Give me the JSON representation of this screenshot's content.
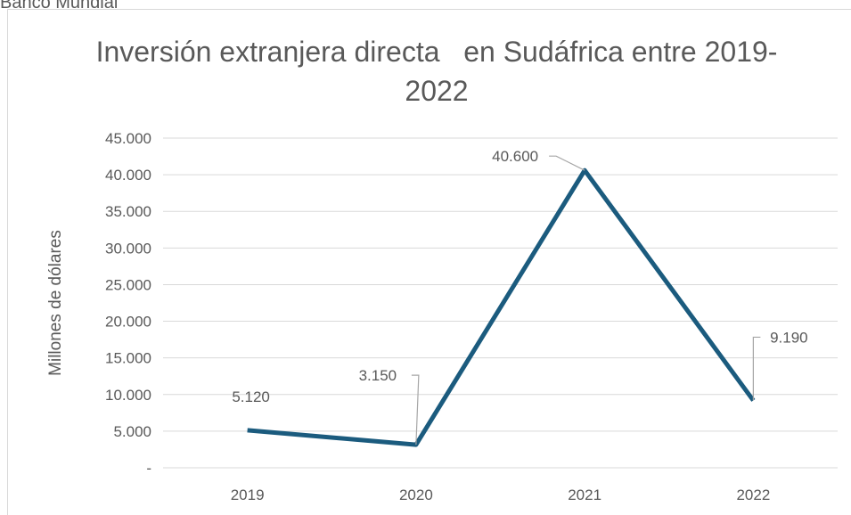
{
  "source": "Banco Mundial",
  "chart_data": {
    "type": "line",
    "title": "Inversión extranjera directa   en Sudáfrica entre 2019-2022",
    "y_label": "Millones de dólares",
    "categories": [
      "2019",
      "2020",
      "2021",
      "2022"
    ],
    "series": [
      {
        "name": "Inversión extranjera directa",
        "color": "#1b5b7e",
        "values": [
          5120,
          3150,
          40600,
          9190
        ],
        "value_labels": [
          "5.120",
          "3.150",
          "40.600",
          "9.190"
        ]
      }
    ],
    "ylim": [
      0,
      45000
    ],
    "yticks": [
      {
        "value": 0,
        "label": "-"
      },
      {
        "value": 5000,
        "label": "5.000"
      },
      {
        "value": 10000,
        "label": "10.000"
      },
      {
        "value": 15000,
        "label": "15.000"
      },
      {
        "value": 20000,
        "label": "20.000"
      },
      {
        "value": 25000,
        "label": "25.000"
      },
      {
        "value": 30000,
        "label": "30.000"
      },
      {
        "value": 35000,
        "label": "35.000"
      },
      {
        "value": 40000,
        "label": "40.000"
      },
      {
        "value": 45000,
        "label": "45.000"
      }
    ],
    "grid": true
  }
}
